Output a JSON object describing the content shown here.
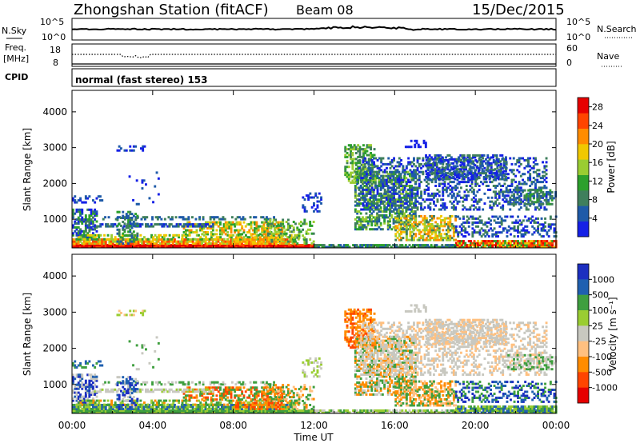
{
  "header": {
    "title": "Zhongshan Station (fitACF)",
    "beam": "Beam 08",
    "date": "15/Dec/2015"
  },
  "top_panels": {
    "nsky": {
      "label": "N.Sky",
      "ticks_left": [
        "10^5",
        "10^0"
      ],
      "ticks_right": [
        "10^5",
        "10^0"
      ],
      "right_label": "N.Search"
    },
    "freq": {
      "label_line1": "Freq.",
      "label_line2": "[MHz]",
      "ticks_left": [
        "18",
        "8"
      ],
      "ticks_right": [
        "60",
        "0"
      ],
      "right_label": "Nave"
    },
    "cpid": {
      "label": "CPID",
      "text": "normal (fast stereo) 153"
    }
  },
  "colors": {
    "power": [
      "#1520e6",
      "#1e5aa8",
      "#3f7f5c",
      "#2ca02c",
      "#9acd32",
      "#f0c800",
      "#ff8c00",
      "#ff4500",
      "#e60000"
    ],
    "velocity": [
      "#e60000",
      "#ff4500",
      "#ff8c00",
      "#ffc080",
      "#c8c8c0",
      "#9acd32",
      "#3f9f3f",
      "#2060b0",
      "#1c2fc0"
    ]
  },
  "chart_data": [
    {
      "type": "heatmap",
      "name": "power-panel",
      "ylabel": "Slant Range [km]",
      "yticks": [
        "1000",
        "2000",
        "3000",
        "4000"
      ],
      "ylim": [
        200,
        4600
      ],
      "xlim": [
        0,
        24
      ],
      "colorbar": {
        "label": "Power [dB]",
        "ticks": [
          "4",
          "8",
          "12",
          "16",
          "20",
          "24",
          "28"
        ],
        "range": [
          0,
          30
        ]
      }
    },
    {
      "type": "heatmap",
      "name": "velocity-panel",
      "ylabel": "Slant Range [km]",
      "yticks": [
        "1000",
        "2000",
        "3000",
        "4000"
      ],
      "ylim": [
        200,
        4600
      ],
      "xlim": [
        0,
        24
      ],
      "xticks": [
        "00:00",
        "04:00",
        "08:00",
        "12:00",
        "16:00",
        "20:00",
        "00:00"
      ],
      "xlabel": "Time UT",
      "colorbar": {
        "label": "Velocity [m s⁻¹]",
        "ticks": [
          "1000",
          "500",
          "100",
          "25",
          "-25",
          "-100",
          "-500",
          "-1000"
        ]
      }
    }
  ]
}
